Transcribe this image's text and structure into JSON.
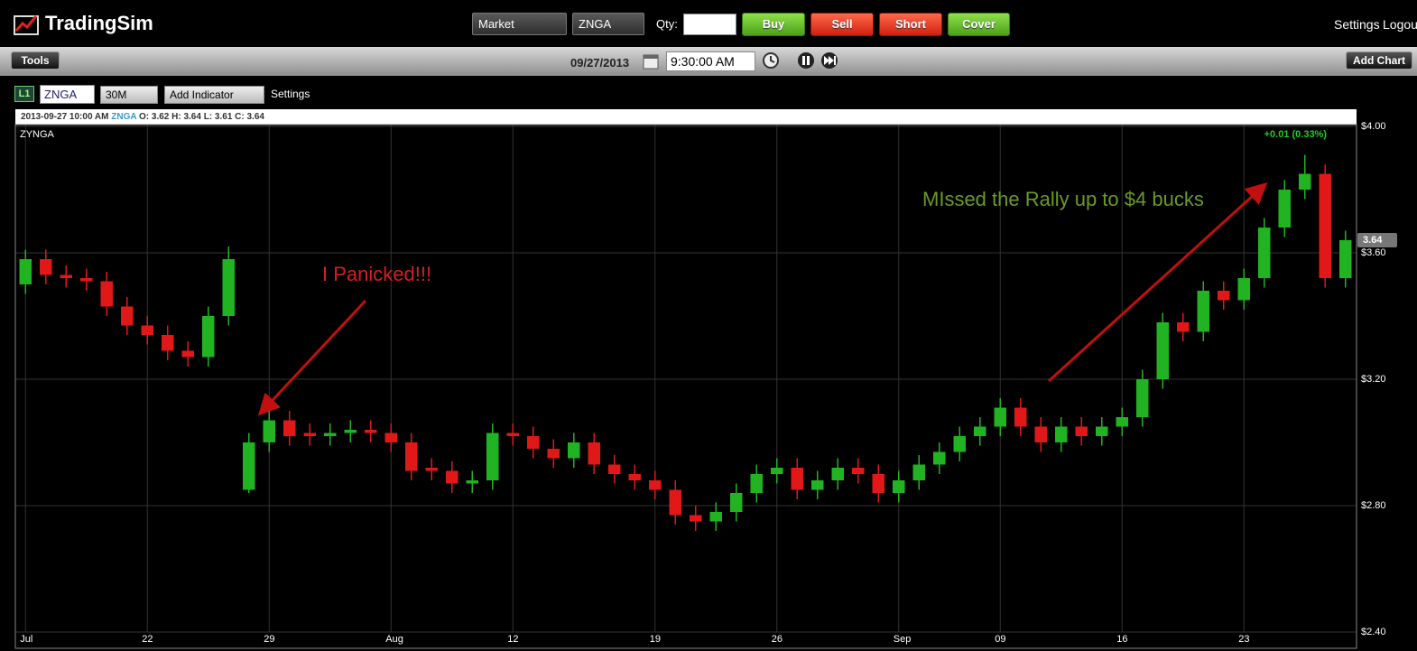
{
  "header": {
    "logo": "TradingSim",
    "order_type": "Market",
    "symbol": "ZNGA",
    "qty_label": "Qty:",
    "buttons": [
      "Buy",
      "Sell",
      "Short",
      "Cover"
    ],
    "settings": "Settings",
    "logout": "Logou"
  },
  "toolbar": {
    "tools": "Tools",
    "date": "09/27/2013",
    "time": "9:30:00 AM",
    "add_chart": "Add Chart"
  },
  "chart_toolbar": {
    "level": "L1",
    "symbol": "ZNGA",
    "interval": "30M",
    "add_indicator": "Add Indicator",
    "settings": "Settings"
  },
  "info_bar": {
    "timestamp": "2013-09-27 10:00 AM",
    "symbol": "ZNGA",
    "ohlc": "O: 3.62 H: 3.64 L: 3.61 C: 3.64"
  },
  "chart_data": {
    "type": "candlestick",
    "title": "ZYNGA",
    "change_label": "+0.01 (0.33%)",
    "annotations": [
      "I Panicked!!!",
      "MIssed the Rally up to $4 bucks"
    ],
    "categories": [
      "Jul",
      null,
      null,
      null,
      null,
      null,
      "22",
      null,
      null,
      null,
      null,
      null,
      "29",
      null,
      null,
      null,
      null,
      null,
      "Aug",
      null,
      null,
      null,
      null,
      null,
      "12",
      null,
      null,
      null,
      null,
      null,
      null,
      "19",
      null,
      null,
      null,
      null,
      null,
      "26",
      null,
      null,
      null,
      null,
      null,
      "Sep",
      null,
      null,
      null,
      null,
      "09",
      null,
      null,
      null,
      null,
      null,
      "16",
      null,
      null,
      null,
      null,
      null,
      "23",
      null,
      null,
      null,
      null,
      null
    ],
    "open": [
      3.5,
      3.58,
      3.53,
      3.52,
      3.51,
      3.43,
      3.37,
      3.34,
      3.29,
      3.27,
      3.4,
      2.85,
      3.0,
      3.07,
      3.03,
      3.02,
      3.03,
      3.04,
      3.03,
      3.0,
      2.92,
      2.91,
      2.87,
      2.88,
      3.03,
      3.02,
      2.98,
      2.95,
      3.0,
      2.93,
      2.9,
      2.88,
      2.85,
      2.77,
      2.75,
      2.78,
      2.84,
      2.9,
      2.92,
      2.85,
      2.88,
      2.92,
      2.9,
      2.84,
      2.88,
      2.93,
      2.97,
      3.02,
      3.05,
      3.11,
      3.05,
      3.0,
      3.05,
      3.02,
      3.05,
      3.08,
      3.2,
      3.38,
      3.35,
      3.48,
      3.45,
      3.52,
      3.68,
      3.8,
      3.85,
      3.52
    ],
    "high": [
      3.61,
      3.61,
      3.56,
      3.55,
      3.54,
      3.46,
      3.4,
      3.37,
      3.32,
      3.43,
      3.62,
      3.03,
      3.1,
      3.1,
      3.06,
      3.06,
      3.07,
      3.07,
      3.06,
      3.03,
      2.95,
      2.94,
      2.91,
      3.06,
      3.06,
      3.05,
      3.01,
      3.03,
      3.03,
      2.96,
      2.93,
      2.91,
      2.88,
      2.8,
      2.81,
      2.87,
      2.93,
      2.95,
      2.95,
      2.91,
      2.95,
      2.95,
      2.93,
      2.91,
      2.96,
      3.0,
      3.05,
      3.08,
      3.14,
      3.14,
      3.08,
      3.08,
      3.08,
      3.08,
      3.11,
      3.23,
      3.41,
      3.41,
      3.51,
      3.51,
      3.55,
      3.71,
      3.83,
      3.91,
      3.88,
      3.67
    ],
    "low": [
      3.47,
      3.5,
      3.49,
      3.48,
      3.4,
      3.34,
      3.31,
      3.26,
      3.24,
      3.24,
      3.37,
      2.84,
      2.97,
      2.99,
      2.99,
      2.99,
      3.0,
      3.0,
      2.97,
      2.88,
      2.88,
      2.84,
      2.84,
      2.85,
      2.99,
      2.95,
      2.92,
      2.92,
      2.9,
      2.87,
      2.85,
      2.82,
      2.74,
      2.72,
      2.72,
      2.75,
      2.81,
      2.87,
      2.82,
      2.82,
      2.85,
      2.87,
      2.81,
      2.81,
      2.85,
      2.9,
      2.94,
      2.99,
      3.02,
      3.02,
      2.97,
      2.97,
      2.99,
      2.99,
      3.02,
      3.05,
      3.17,
      3.32,
      3.32,
      3.42,
      3.42,
      3.49,
      3.65,
      3.77,
      3.49,
      3.49
    ],
    "close": [
      3.58,
      3.53,
      3.52,
      3.51,
      3.43,
      3.37,
      3.34,
      3.29,
      3.27,
      3.4,
      3.58,
      3.0,
      3.07,
      3.02,
      3.02,
      3.03,
      3.04,
      3.03,
      3.0,
      2.91,
      2.91,
      2.87,
      2.88,
      3.03,
      3.02,
      2.98,
      2.95,
      3.0,
      2.93,
      2.9,
      2.88,
      2.85,
      2.77,
      2.75,
      2.78,
      2.84,
      2.9,
      2.92,
      2.85,
      2.88,
      2.92,
      2.9,
      2.84,
      2.88,
      2.93,
      2.97,
      3.02,
      3.05,
      3.11,
      3.05,
      3.0,
      3.05,
      3.02,
      3.05,
      3.08,
      3.2,
      3.38,
      3.35,
      3.48,
      3.45,
      3.52,
      3.68,
      3.8,
      3.85,
      3.52,
      3.64
    ],
    "up_color": "#21b321",
    "down_color": "#e01818",
    "ylim": [
      2.4,
      4.0
    ],
    "yticks": [
      {
        "value": 2.4,
        "label": "$2.40"
      },
      {
        "value": 2.8,
        "label": "$2.80"
      },
      {
        "value": 3.2,
        "label": "$3.20"
      },
      {
        "value": 3.6,
        "label": "$3.60"
      },
      {
        "value": 4.0,
        "label": "$4.00"
      }
    ],
    "grid": true
  }
}
